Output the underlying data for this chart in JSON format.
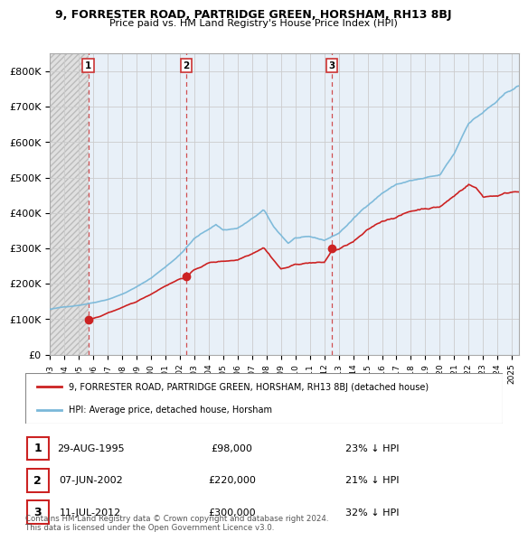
{
  "title1": "9, FORRESTER ROAD, PARTRIDGE GREEN, HORSHAM, RH13 8BJ",
  "title2": "Price paid vs. HM Land Registry's House Price Index (HPI)",
  "ylim": [
    0,
    850000
  ],
  "yticks": [
    0,
    100000,
    200000,
    300000,
    400000,
    500000,
    600000,
    700000,
    800000
  ],
  "ytick_labels": [
    "£0",
    "£100K",
    "£200K",
    "£300K",
    "£400K",
    "£500K",
    "£600K",
    "£700K",
    "£800K"
  ],
  "hpi_color": "#7ab8d9",
  "price_color": "#cc2222",
  "vline_color": "#cc3333",
  "hatch_color": "#c8c8c8",
  "bg_blue": "#e8f0f8",
  "bg_hatch": "#e0e0e0",
  "sales": [
    {
      "date_num": 1995.66,
      "price": 98000,
      "label": "1"
    },
    {
      "date_num": 2002.43,
      "price": 220000,
      "label": "2"
    },
    {
      "date_num": 2012.52,
      "price": 300000,
      "label": "3"
    }
  ],
  "legend_label_red": "9, FORRESTER ROAD, PARTRIDGE GREEN, HORSHAM, RH13 8BJ (detached house)",
  "legend_label_blue": "HPI: Average price, detached house, Horsham",
  "table_rows": [
    {
      "num": "1",
      "date": "29-AUG-1995",
      "price": "£98,000",
      "hpi": "23% ↓ HPI"
    },
    {
      "num": "2",
      "date": "07-JUN-2002",
      "price": "£220,000",
      "hpi": "21% ↓ HPI"
    },
    {
      "num": "3",
      "date": "11-JUL-2012",
      "price": "£300,000",
      "hpi": "32% ↓ HPI"
    }
  ],
  "footnote": "Contains HM Land Registry data © Crown copyright and database right 2024.\nThis data is licensed under the Open Government Licence v3.0.",
  "xlim_left": 1993.0,
  "xlim_right": 2025.5
}
